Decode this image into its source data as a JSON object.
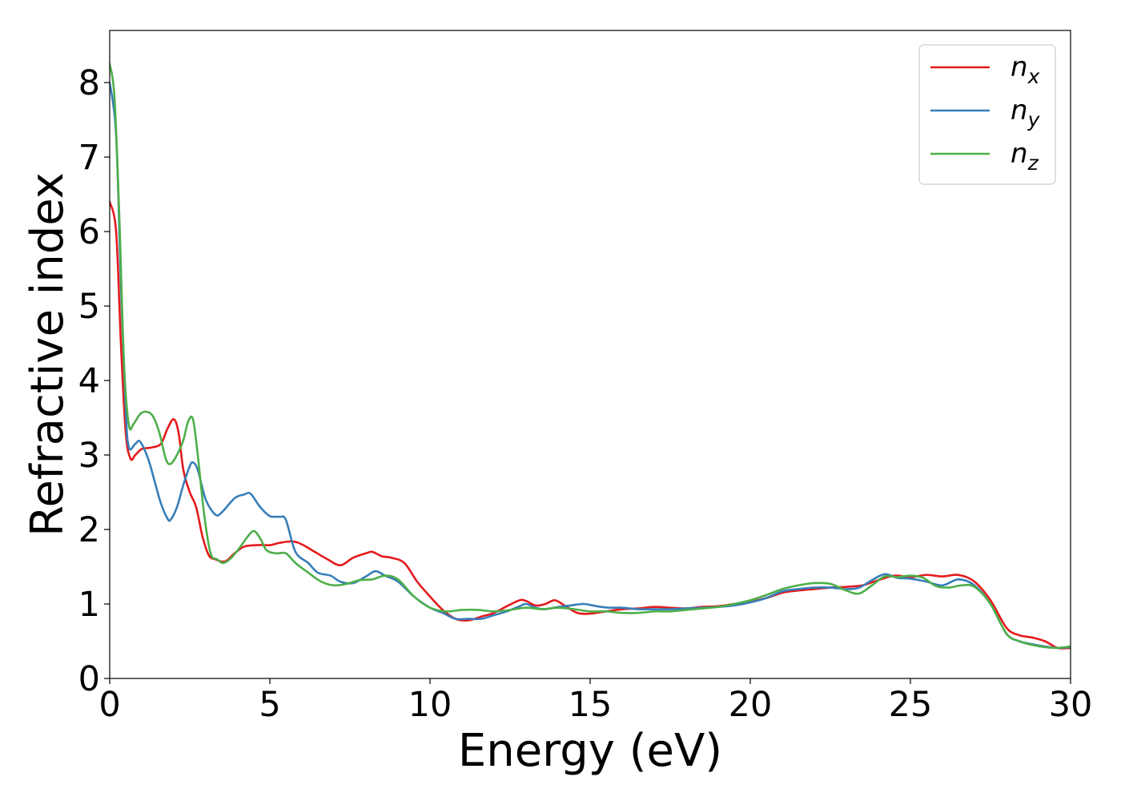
{
  "chart_data": {
    "type": "line",
    "title": "",
    "xlabel": "Energy (eV)",
    "ylabel": "Refractive index",
    "xlim": [
      0,
      30
    ],
    "ylim": [
      0,
      8.7
    ],
    "xticks": [
      0,
      5,
      10,
      15,
      20,
      25,
      30
    ],
    "yticks": [
      0,
      1,
      2,
      3,
      4,
      5,
      6,
      7,
      8
    ],
    "grid": false,
    "legend_position": "top-right",
    "series": [
      {
        "name": "n",
        "subscript": "x",
        "color": "#e41a1c",
        "points": [
          [
            0,
            6.4
          ],
          [
            0.2,
            6.0
          ],
          [
            0.35,
            4.5
          ],
          [
            0.5,
            3.3
          ],
          [
            0.65,
            2.95
          ],
          [
            0.8,
            3.0
          ],
          [
            1.0,
            3.08
          ],
          [
            1.3,
            3.1
          ],
          [
            1.6,
            3.15
          ],
          [
            1.8,
            3.35
          ],
          [
            2.0,
            3.48
          ],
          [
            2.15,
            3.3
          ],
          [
            2.3,
            2.8
          ],
          [
            2.5,
            2.5
          ],
          [
            2.7,
            2.3
          ],
          [
            2.9,
            1.9
          ],
          [
            3.1,
            1.65
          ],
          [
            3.3,
            1.6
          ],
          [
            3.6,
            1.57
          ],
          [
            3.9,
            1.68
          ],
          [
            4.2,
            1.77
          ],
          [
            4.6,
            1.79
          ],
          [
            5.0,
            1.79
          ],
          [
            5.3,
            1.82
          ],
          [
            5.7,
            1.84
          ],
          [
            6.0,
            1.8
          ],
          [
            6.4,
            1.7
          ],
          [
            6.8,
            1.6
          ],
          [
            7.2,
            1.52
          ],
          [
            7.6,
            1.62
          ],
          [
            8.0,
            1.68
          ],
          [
            8.2,
            1.7
          ],
          [
            8.5,
            1.64
          ],
          [
            8.8,
            1.62
          ],
          [
            9.2,
            1.55
          ],
          [
            9.6,
            1.3
          ],
          [
            10.0,
            1.1
          ],
          [
            10.4,
            0.92
          ],
          [
            10.8,
            0.8
          ],
          [
            11.2,
            0.78
          ],
          [
            11.6,
            0.83
          ],
          [
            12.0,
            0.88
          ],
          [
            12.4,
            0.97
          ],
          [
            12.8,
            1.05
          ],
          [
            13.0,
            1.04
          ],
          [
            13.3,
            0.98
          ],
          [
            13.6,
            1.0
          ],
          [
            13.9,
            1.05
          ],
          [
            14.2,
            0.98
          ],
          [
            14.6,
            0.88
          ],
          [
            15.0,
            0.87
          ],
          [
            15.5,
            0.9
          ],
          [
            16.0,
            0.93
          ],
          [
            16.5,
            0.94
          ],
          [
            17.0,
            0.96
          ],
          [
            17.5,
            0.95
          ],
          [
            18.0,
            0.94
          ],
          [
            18.5,
            0.96
          ],
          [
            19.0,
            0.97
          ],
          [
            19.5,
            1.0
          ],
          [
            20.0,
            1.03
          ],
          [
            20.5,
            1.08
          ],
          [
            21.0,
            1.15
          ],
          [
            21.5,
            1.18
          ],
          [
            22.0,
            1.2
          ],
          [
            22.5,
            1.22
          ],
          [
            23.0,
            1.23
          ],
          [
            23.5,
            1.25
          ],
          [
            24.0,
            1.32
          ],
          [
            24.5,
            1.38
          ],
          [
            25.0,
            1.36
          ],
          [
            25.5,
            1.39
          ],
          [
            26.0,
            1.37
          ],
          [
            26.5,
            1.39
          ],
          [
            27.0,
            1.3
          ],
          [
            27.5,
            1.05
          ],
          [
            28.0,
            0.68
          ],
          [
            28.4,
            0.58
          ],
          [
            28.8,
            0.55
          ],
          [
            29.2,
            0.5
          ],
          [
            29.6,
            0.41
          ],
          [
            30.0,
            0.41
          ]
        ]
      },
      {
        "name": "n",
        "subscript": "y",
        "color": "#377eb8",
        "points": [
          [
            0,
            8.0
          ],
          [
            0.2,
            7.3
          ],
          [
            0.35,
            5.3
          ],
          [
            0.5,
            3.6
          ],
          [
            0.6,
            3.1
          ],
          [
            0.8,
            3.15
          ],
          [
            0.95,
            3.18
          ],
          [
            1.2,
            2.95
          ],
          [
            1.4,
            2.65
          ],
          [
            1.6,
            2.35
          ],
          [
            1.8,
            2.15
          ],
          [
            1.9,
            2.13
          ],
          [
            2.1,
            2.3
          ],
          [
            2.3,
            2.6
          ],
          [
            2.5,
            2.85
          ],
          [
            2.6,
            2.9
          ],
          [
            2.75,
            2.8
          ],
          [
            3.0,
            2.4
          ],
          [
            3.3,
            2.2
          ],
          [
            3.5,
            2.23
          ],
          [
            3.9,
            2.42
          ],
          [
            4.2,
            2.47
          ],
          [
            4.4,
            2.48
          ],
          [
            4.7,
            2.3
          ],
          [
            5.0,
            2.18
          ],
          [
            5.3,
            2.17
          ],
          [
            5.5,
            2.13
          ],
          [
            5.8,
            1.7
          ],
          [
            6.2,
            1.55
          ],
          [
            6.5,
            1.42
          ],
          [
            6.9,
            1.38
          ],
          [
            7.2,
            1.3
          ],
          [
            7.6,
            1.28
          ],
          [
            8.0,
            1.37
          ],
          [
            8.3,
            1.44
          ],
          [
            8.6,
            1.38
          ],
          [
            9.0,
            1.3
          ],
          [
            9.5,
            1.1
          ],
          [
            10.0,
            0.95
          ],
          [
            10.4,
            0.88
          ],
          [
            10.8,
            0.8
          ],
          [
            11.2,
            0.8
          ],
          [
            11.6,
            0.8
          ],
          [
            12.0,
            0.85
          ],
          [
            12.4,
            0.9
          ],
          [
            12.8,
            0.97
          ],
          [
            13.0,
            1.0
          ],
          [
            13.3,
            0.95
          ],
          [
            13.6,
            0.93
          ],
          [
            14.0,
            0.96
          ],
          [
            14.4,
            0.98
          ],
          [
            14.8,
            1.0
          ],
          [
            15.2,
            0.97
          ],
          [
            15.6,
            0.95
          ],
          [
            16.0,
            0.95
          ],
          [
            16.5,
            0.93
          ],
          [
            17.0,
            0.93
          ],
          [
            17.5,
            0.93
          ],
          [
            18.0,
            0.94
          ],
          [
            18.5,
            0.95
          ],
          [
            19.0,
            0.96
          ],
          [
            19.5,
            0.98
          ],
          [
            20.0,
            1.02
          ],
          [
            20.5,
            1.08
          ],
          [
            21.0,
            1.17
          ],
          [
            21.5,
            1.2
          ],
          [
            22.0,
            1.22
          ],
          [
            22.5,
            1.22
          ],
          [
            23.0,
            1.2
          ],
          [
            23.4,
            1.22
          ],
          [
            23.8,
            1.32
          ],
          [
            24.2,
            1.4
          ],
          [
            24.6,
            1.35
          ],
          [
            25.0,
            1.34
          ],
          [
            25.5,
            1.3
          ],
          [
            26.0,
            1.25
          ],
          [
            26.5,
            1.33
          ],
          [
            27.0,
            1.25
          ],
          [
            27.5,
            1.0
          ],
          [
            28.0,
            0.6
          ],
          [
            28.4,
            0.5
          ],
          [
            28.8,
            0.46
          ],
          [
            29.2,
            0.43
          ],
          [
            29.6,
            0.41
          ],
          [
            30.0,
            0.42
          ]
        ]
      },
      {
        "name": "n",
        "subscript": "z",
        "color": "#4daf4a",
        "points": [
          [
            0,
            8.25
          ],
          [
            0.15,
            7.8
          ],
          [
            0.3,
            6.2
          ],
          [
            0.45,
            4.2
          ],
          [
            0.6,
            3.4
          ],
          [
            0.75,
            3.42
          ],
          [
            0.95,
            3.55
          ],
          [
            1.15,
            3.58
          ],
          [
            1.35,
            3.52
          ],
          [
            1.55,
            3.3
          ],
          [
            1.75,
            2.95
          ],
          [
            1.9,
            2.88
          ],
          [
            2.1,
            3.0
          ],
          [
            2.3,
            3.2
          ],
          [
            2.45,
            3.45
          ],
          [
            2.6,
            3.48
          ],
          [
            2.75,
            3.0
          ],
          [
            2.95,
            2.2
          ],
          [
            3.15,
            1.68
          ],
          [
            3.35,
            1.6
          ],
          [
            3.55,
            1.55
          ],
          [
            3.8,
            1.62
          ],
          [
            4.1,
            1.78
          ],
          [
            4.3,
            1.9
          ],
          [
            4.5,
            1.98
          ],
          [
            4.7,
            1.88
          ],
          [
            4.9,
            1.72
          ],
          [
            5.2,
            1.68
          ],
          [
            5.5,
            1.68
          ],
          [
            5.8,
            1.55
          ],
          [
            6.2,
            1.42
          ],
          [
            6.6,
            1.3
          ],
          [
            7.0,
            1.25
          ],
          [
            7.4,
            1.27
          ],
          [
            7.8,
            1.32
          ],
          [
            8.2,
            1.33
          ],
          [
            8.6,
            1.38
          ],
          [
            9.0,
            1.33
          ],
          [
            9.5,
            1.1
          ],
          [
            10.0,
            0.95
          ],
          [
            10.5,
            0.9
          ],
          [
            11.0,
            0.92
          ],
          [
            11.5,
            0.92
          ],
          [
            12.0,
            0.9
          ],
          [
            12.5,
            0.92
          ],
          [
            13.0,
            0.95
          ],
          [
            13.5,
            0.93
          ],
          [
            14.0,
            0.95
          ],
          [
            14.5,
            0.93
          ],
          [
            15.0,
            0.9
          ],
          [
            15.5,
            0.9
          ],
          [
            16.0,
            0.88
          ],
          [
            16.5,
            0.88
          ],
          [
            17.0,
            0.9
          ],
          [
            17.5,
            0.9
          ],
          [
            18.0,
            0.92
          ],
          [
            18.5,
            0.94
          ],
          [
            19.0,
            0.96
          ],
          [
            19.5,
            1.0
          ],
          [
            20.0,
            1.05
          ],
          [
            20.5,
            1.12
          ],
          [
            21.0,
            1.2
          ],
          [
            21.5,
            1.25
          ],
          [
            22.0,
            1.28
          ],
          [
            22.5,
            1.27
          ],
          [
            23.0,
            1.18
          ],
          [
            23.4,
            1.14
          ],
          [
            23.8,
            1.25
          ],
          [
            24.2,
            1.37
          ],
          [
            24.6,
            1.36
          ],
          [
            25.0,
            1.38
          ],
          [
            25.4,
            1.35
          ],
          [
            25.8,
            1.24
          ],
          [
            26.2,
            1.22
          ],
          [
            26.6,
            1.25
          ],
          [
            27.0,
            1.23
          ],
          [
            27.5,
            1.0
          ],
          [
            28.0,
            0.6
          ],
          [
            28.4,
            0.5
          ],
          [
            28.8,
            0.45
          ],
          [
            29.2,
            0.42
          ],
          [
            29.6,
            0.41
          ],
          [
            30.0,
            0.43
          ]
        ]
      }
    ]
  }
}
